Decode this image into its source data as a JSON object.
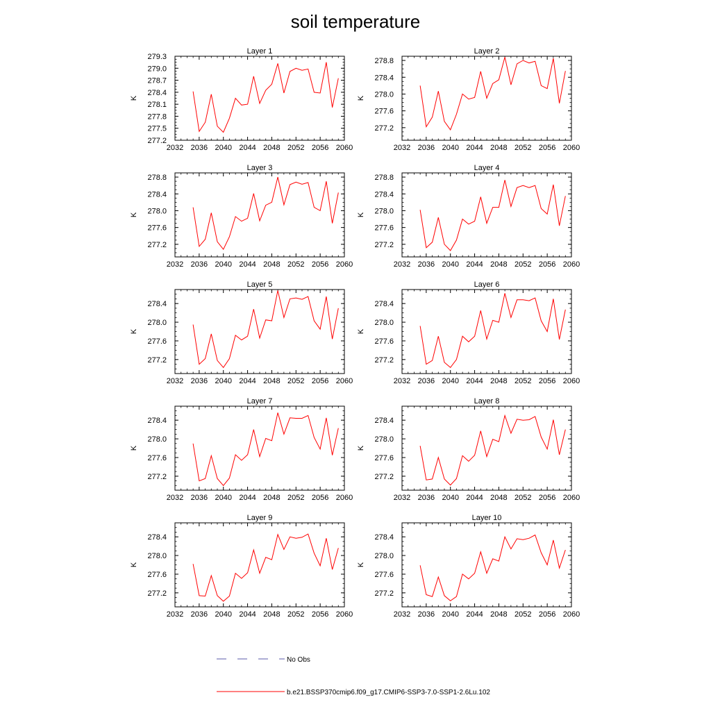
{
  "title": "soil temperature",
  "legend": {
    "obs_label": "No Obs",
    "model_label": "b.e21.BSSP370cmip6.f09_g17.CMIP6-SSP3-7.0-SSP1-2.6Lu.102",
    "obs_color": "#5a5aa8",
    "model_color": "#ff0000"
  },
  "chart_data": [
    {
      "type": "line",
      "title": "Layer 1",
      "xlabel": "",
      "ylabel": "K",
      "xlim": [
        2032,
        2060
      ],
      "ylim": [
        277.2,
        279.3
      ],
      "xticks": [
        2032,
        2036,
        2040,
        2044,
        2048,
        2052,
        2056,
        2060
      ],
      "yticks": [
        277.2,
        277.5,
        277.8,
        278.1,
        278.4,
        278.7,
        279.0,
        279.3
      ],
      "yticklabels": [
        "277.2",
        "277.5",
        "277.8",
        "278.1",
        "278.4",
        "278.7",
        "279.0",
        "279.3"
      ],
      "x": [
        2035,
        2036,
        2037,
        2038,
        2039,
        2040,
        2041,
        2042,
        2043,
        2044,
        2045,
        2046,
        2047,
        2048,
        2049,
        2050,
        2051,
        2052,
        2053,
        2054,
        2055,
        2056,
        2057,
        2058,
        2059
      ],
      "series": [
        {
          "values": [
            278.42,
            277.42,
            277.65,
            278.35,
            277.55,
            277.4,
            277.75,
            278.25,
            278.08,
            278.1,
            278.8,
            278.12,
            278.45,
            278.6,
            279.12,
            278.38,
            278.92,
            279.0,
            278.95,
            278.98,
            278.4,
            278.38,
            279.15,
            278.02,
            278.75
          ]
        }
      ]
    },
    {
      "type": "line",
      "title": "Layer 2",
      "xlabel": "",
      "ylabel": "K",
      "xlim": [
        2032,
        2060
      ],
      "ylim": [
        276.9,
        278.9
      ],
      "xticks": [
        2032,
        2036,
        2040,
        2044,
        2048,
        2052,
        2056,
        2060
      ],
      "yticks": [
        277.2,
        277.6,
        278.0,
        278.4,
        278.8
      ],
      "yticklabels": [
        "277.2",
        "277.6",
        "278.0",
        "278.4",
        "278.8"
      ],
      "x": [
        2035,
        2036,
        2037,
        2038,
        2039,
        2040,
        2041,
        2042,
        2043,
        2044,
        2045,
        2046,
        2047,
        2048,
        2049,
        2050,
        2051,
        2052,
        2053,
        2054,
        2055,
        2056,
        2057,
        2058,
        2059
      ],
      "series": [
        {
          "values": [
            278.2,
            277.22,
            277.45,
            278.07,
            277.35,
            277.15,
            277.52,
            278.0,
            277.88,
            277.92,
            278.54,
            277.9,
            278.25,
            278.34,
            278.88,
            278.22,
            278.72,
            278.8,
            278.74,
            278.78,
            278.2,
            278.13,
            278.85,
            277.78,
            278.55
          ]
        }
      ]
    },
    {
      "type": "line",
      "title": "Layer 3",
      "xlabel": "",
      "ylabel": "K",
      "xlim": [
        2032,
        2060
      ],
      "ylim": [
        276.9,
        278.9
      ],
      "xticks": [
        2032,
        2036,
        2040,
        2044,
        2048,
        2052,
        2056,
        2060
      ],
      "yticks": [
        277.2,
        277.6,
        278.0,
        278.4,
        278.8
      ],
      "yticklabels": [
        "277.2",
        "277.6",
        "278.0",
        "278.4",
        "278.8"
      ],
      "x": [
        2035,
        2036,
        2037,
        2038,
        2039,
        2040,
        2041,
        2042,
        2043,
        2044,
        2045,
        2046,
        2047,
        2048,
        2049,
        2050,
        2051,
        2052,
        2053,
        2054,
        2055,
        2056,
        2057,
        2058,
        2059
      ],
      "series": [
        {
          "values": [
            278.08,
            277.15,
            277.32,
            277.95,
            277.26,
            277.08,
            277.38,
            277.86,
            277.75,
            277.82,
            278.41,
            277.76,
            278.13,
            278.2,
            278.8,
            278.14,
            278.62,
            278.68,
            278.63,
            278.67,
            278.08,
            278.0,
            278.7,
            277.7,
            278.43
          ]
        }
      ]
    },
    {
      "type": "line",
      "title": "Layer 4",
      "xlabel": "",
      "ylabel": "K",
      "xlim": [
        2032,
        2060
      ],
      "ylim": [
        276.9,
        278.9
      ],
      "xticks": [
        2032,
        2036,
        2040,
        2044,
        2048,
        2052,
        2056,
        2060
      ],
      "yticks": [
        277.2,
        277.6,
        278.0,
        278.4,
        278.8
      ],
      "yticklabels": [
        "277.2",
        "277.6",
        "278.0",
        "278.4",
        "278.8"
      ],
      "x": [
        2035,
        2036,
        2037,
        2038,
        2039,
        2040,
        2041,
        2042,
        2043,
        2044,
        2045,
        2046,
        2047,
        2048,
        2049,
        2050,
        2051,
        2052,
        2053,
        2054,
        2055,
        2056,
        2057,
        2058,
        2059
      ],
      "series": [
        {
          "values": [
            278.02,
            277.12,
            277.25,
            277.84,
            277.2,
            277.05,
            277.3,
            277.8,
            277.68,
            277.75,
            278.33,
            277.7,
            278.08,
            278.08,
            278.73,
            278.1,
            278.55,
            278.6,
            278.55,
            278.6,
            278.05,
            277.92,
            278.62,
            277.64,
            278.35
          ]
        }
      ]
    },
    {
      "type": "line",
      "title": "Layer 5",
      "xlabel": "",
      "ylabel": "K",
      "xlim": [
        2032,
        2060
      ],
      "ylim": [
        276.9,
        278.7
      ],
      "xticks": [
        2032,
        2036,
        2040,
        2044,
        2048,
        2052,
        2056,
        2060
      ],
      "yticks": [
        277.2,
        277.6,
        278.0,
        278.4
      ],
      "yticklabels": [
        "277.2",
        "277.6",
        "278.0",
        "278.4"
      ],
      "x": [
        2035,
        2036,
        2037,
        2038,
        2039,
        2040,
        2041,
        2042,
        2043,
        2044,
        2045,
        2046,
        2047,
        2048,
        2049,
        2050,
        2051,
        2052,
        2053,
        2054,
        2055,
        2056,
        2057,
        2058,
        2059
      ],
      "series": [
        {
          "values": [
            277.95,
            277.1,
            277.22,
            277.75,
            277.18,
            277.03,
            277.22,
            277.72,
            277.62,
            277.7,
            278.28,
            277.66,
            278.05,
            278.03,
            278.68,
            278.1,
            278.5,
            278.52,
            278.49,
            278.55,
            278.03,
            277.85,
            278.55,
            277.64,
            278.3
          ]
        }
      ]
    },
    {
      "type": "line",
      "title": "Layer 6",
      "xlabel": "",
      "ylabel": "K",
      "xlim": [
        2032,
        2060
      ],
      "ylim": [
        276.9,
        278.7
      ],
      "xticks": [
        2032,
        2036,
        2040,
        2044,
        2048,
        2052,
        2056,
        2060
      ],
      "yticks": [
        277.2,
        277.6,
        278.0,
        278.4
      ],
      "yticklabels": [
        "277.2",
        "277.6",
        "278.0",
        "278.4"
      ],
      "x": [
        2035,
        2036,
        2037,
        2038,
        2039,
        2040,
        2041,
        2042,
        2043,
        2044,
        2045,
        2046,
        2047,
        2048,
        2049,
        2050,
        2051,
        2052,
        2053,
        2054,
        2055,
        2056,
        2057,
        2058,
        2059
      ],
      "series": [
        {
          "values": [
            277.92,
            277.1,
            277.18,
            277.7,
            277.14,
            277.03,
            277.2,
            277.7,
            277.58,
            277.7,
            278.25,
            277.64,
            278.04,
            278.0,
            278.62,
            278.1,
            278.48,
            278.48,
            278.46,
            278.52,
            278.03,
            277.8,
            278.5,
            277.63,
            278.27
          ]
        }
      ]
    },
    {
      "type": "line",
      "title": "Layer 7",
      "xlabel": "",
      "ylabel": "K",
      "xlim": [
        2032,
        2060
      ],
      "ylim": [
        276.9,
        278.7
      ],
      "xticks": [
        2032,
        2036,
        2040,
        2044,
        2048,
        2052,
        2056,
        2060
      ],
      "yticks": [
        277.2,
        277.6,
        278.0,
        278.4
      ],
      "yticklabels": [
        "277.2",
        "277.6",
        "278.0",
        "278.4"
      ],
      "x": [
        2035,
        2036,
        2037,
        2038,
        2039,
        2040,
        2041,
        2042,
        2043,
        2044,
        2045,
        2046,
        2047,
        2048,
        2049,
        2050,
        2051,
        2052,
        2053,
        2054,
        2055,
        2056,
        2057,
        2058,
        2059
      ],
      "series": [
        {
          "values": [
            277.9,
            277.1,
            277.15,
            277.64,
            277.15,
            277.0,
            277.16,
            277.66,
            277.54,
            277.66,
            278.2,
            277.62,
            278.01,
            277.96,
            278.56,
            278.1,
            278.45,
            278.44,
            278.44,
            278.5,
            278.03,
            277.78,
            278.45,
            277.65,
            278.23
          ]
        }
      ]
    },
    {
      "type": "line",
      "title": "Layer 8",
      "xlabel": "",
      "ylabel": "K",
      "xlim": [
        2032,
        2060
      ],
      "ylim": [
        276.9,
        278.7
      ],
      "xticks": [
        2032,
        2036,
        2040,
        2044,
        2048,
        2052,
        2056,
        2060
      ],
      "yticks": [
        277.2,
        277.6,
        278.0,
        278.4
      ],
      "yticklabels": [
        "277.2",
        "277.6",
        "278.0",
        "278.4"
      ],
      "x": [
        2035,
        2036,
        2037,
        2038,
        2039,
        2040,
        2041,
        2042,
        2043,
        2044,
        2045,
        2046,
        2047,
        2048,
        2049,
        2050,
        2051,
        2052,
        2053,
        2054,
        2055,
        2056,
        2057,
        2058,
        2059
      ],
      "series": [
        {
          "values": [
            277.85,
            277.12,
            277.14,
            277.6,
            277.14,
            277.01,
            277.15,
            277.64,
            277.52,
            277.65,
            278.17,
            277.62,
            277.99,
            277.94,
            278.5,
            278.12,
            278.42,
            278.4,
            278.41,
            278.48,
            278.04,
            277.78,
            278.41,
            277.66,
            278.2
          ]
        }
      ]
    },
    {
      "type": "line",
      "title": "Layer 9",
      "xlabel": "",
      "ylabel": "K",
      "xlim": [
        2032,
        2060
      ],
      "ylim": [
        276.9,
        278.7
      ],
      "xticks": [
        2032,
        2036,
        2040,
        2044,
        2048,
        2052,
        2056,
        2060
      ],
      "yticks": [
        277.2,
        277.6,
        278.0,
        278.4
      ],
      "yticklabels": [
        "277.2",
        "277.6",
        "278.0",
        "278.4"
      ],
      "x": [
        2035,
        2036,
        2037,
        2038,
        2039,
        2040,
        2041,
        2042,
        2043,
        2044,
        2045,
        2046,
        2047,
        2048,
        2049,
        2050,
        2051,
        2052,
        2053,
        2054,
        2055,
        2056,
        2057,
        2058,
        2059
      ],
      "series": [
        {
          "values": [
            277.82,
            277.14,
            277.13,
            277.57,
            277.14,
            277.02,
            277.13,
            277.62,
            277.51,
            277.63,
            278.12,
            277.62,
            277.96,
            277.91,
            278.45,
            278.13,
            278.4,
            278.37,
            278.39,
            278.46,
            278.05,
            277.78,
            278.37,
            277.7,
            278.16
          ]
        }
      ]
    },
    {
      "type": "line",
      "title": "Layer 10",
      "xlabel": "",
      "ylabel": "K",
      "xlim": [
        2032,
        2060
      ],
      "ylim": [
        276.9,
        278.7
      ],
      "xticks": [
        2032,
        2036,
        2040,
        2044,
        2048,
        2052,
        2056,
        2060
      ],
      "yticks": [
        277.2,
        277.6,
        278.0,
        278.4
      ],
      "yticklabels": [
        "277.2",
        "277.6",
        "278.0",
        "278.4"
      ],
      "x": [
        2035,
        2036,
        2037,
        2038,
        2039,
        2040,
        2041,
        2042,
        2043,
        2044,
        2045,
        2046,
        2047,
        2048,
        2049,
        2050,
        2051,
        2052,
        2053,
        2054,
        2055,
        2056,
        2057,
        2058,
        2059
      ],
      "series": [
        {
          "values": [
            277.79,
            277.16,
            277.12,
            277.54,
            277.14,
            277.03,
            277.12,
            277.6,
            277.5,
            277.62,
            278.08,
            277.62,
            277.93,
            277.88,
            278.4,
            278.14,
            278.36,
            278.34,
            278.37,
            278.44,
            278.06,
            277.8,
            278.33,
            277.73,
            278.12
          ]
        }
      ]
    }
  ]
}
